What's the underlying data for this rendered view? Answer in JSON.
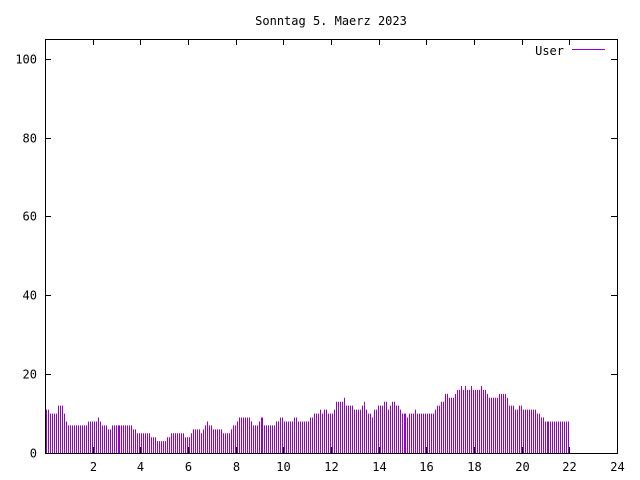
{
  "colors": {
    "series": "#9400d3",
    "axis": "#000000",
    "background": "#ffffff"
  },
  "chart_data": {
    "type": "bar",
    "title": "Sonntag 5. Maerz 2023",
    "xlabel": "",
    "ylabel": "",
    "xlim": [
      0,
      24
    ],
    "ylim": [
      0,
      105
    ],
    "xticks": [
      2,
      4,
      6,
      8,
      10,
      12,
      14,
      16,
      18,
      20,
      22,
      24
    ],
    "yticks": [
      0,
      20,
      40,
      60,
      80,
      100
    ],
    "grid": false,
    "legend_position": "top-right",
    "series": [
      {
        "name": "User",
        "interval_minutes": 5,
        "values": [
          11,
          11,
          10,
          10,
          10,
          10,
          12,
          12,
          12,
          10,
          8,
          7,
          7,
          7,
          7,
          7,
          7,
          7,
          7,
          7,
          7,
          8,
          8,
          8,
          8,
          8,
          9,
          8,
          7,
          7,
          7,
          6,
          6,
          7,
          7,
          7,
          7,
          7,
          7,
          7,
          7,
          7,
          7,
          7,
          6,
          6,
          5,
          5,
          5,
          5,
          5,
          5,
          5,
          4,
          4,
          4,
          3,
          3,
          3,
          3,
          3,
          4,
          4,
          5,
          5,
          5,
          5,
          5,
          5,
          5,
          4,
          4,
          4,
          5,
          6,
          6,
          6,
          6,
          5,
          6,
          7,
          8,
          7,
          7,
          6,
          6,
          6,
          6,
          6,
          5,
          5,
          5,
          5,
          6,
          7,
          7,
          8,
          9,
          9,
          9,
          9,
          9,
          9,
          8,
          7,
          7,
          7,
          8,
          9,
          9,
          7,
          7,
          7,
          7,
          7,
          7,
          8,
          8,
          9,
          9,
          8,
          8,
          8,
          8,
          8,
          9,
          9,
          8,
          8,
          8,
          8,
          8,
          8,
          9,
          9,
          10,
          10,
          10,
          11,
          10,
          11,
          11,
          10,
          10,
          10,
          11,
          13,
          13,
          13,
          13,
          14,
          12,
          12,
          12,
          12,
          11,
          11,
          11,
          11,
          12,
          13,
          11,
          10,
          10,
          9,
          11,
          11,
          12,
          12,
          12,
          13,
          13,
          11,
          12,
          13,
          13,
          12,
          12,
          11,
          10,
          10,
          10,
          9,
          10,
          10,
          10,
          11,
          10,
          10,
          10,
          10,
          10,
          10,
          10,
          10,
          10,
          11,
          12,
          12,
          13,
          13,
          15,
          15,
          14,
          14,
          14,
          15,
          16,
          16,
          17,
          16,
          17,
          16,
          16,
          17,
          16,
          16,
          16,
          16,
          17,
          16,
          16,
          15,
          14,
          14,
          14,
          14,
          14,
          15,
          15,
          15,
          15,
          14,
          12,
          12,
          12,
          11,
          11,
          12,
          12,
          11,
          11,
          11,
          11,
          11,
          11,
          11,
          10,
          10,
          9,
          9,
          8,
          8,
          8,
          8,
          8,
          8,
          8,
          8,
          8,
          8,
          8,
          8,
          8
        ]
      }
    ]
  }
}
